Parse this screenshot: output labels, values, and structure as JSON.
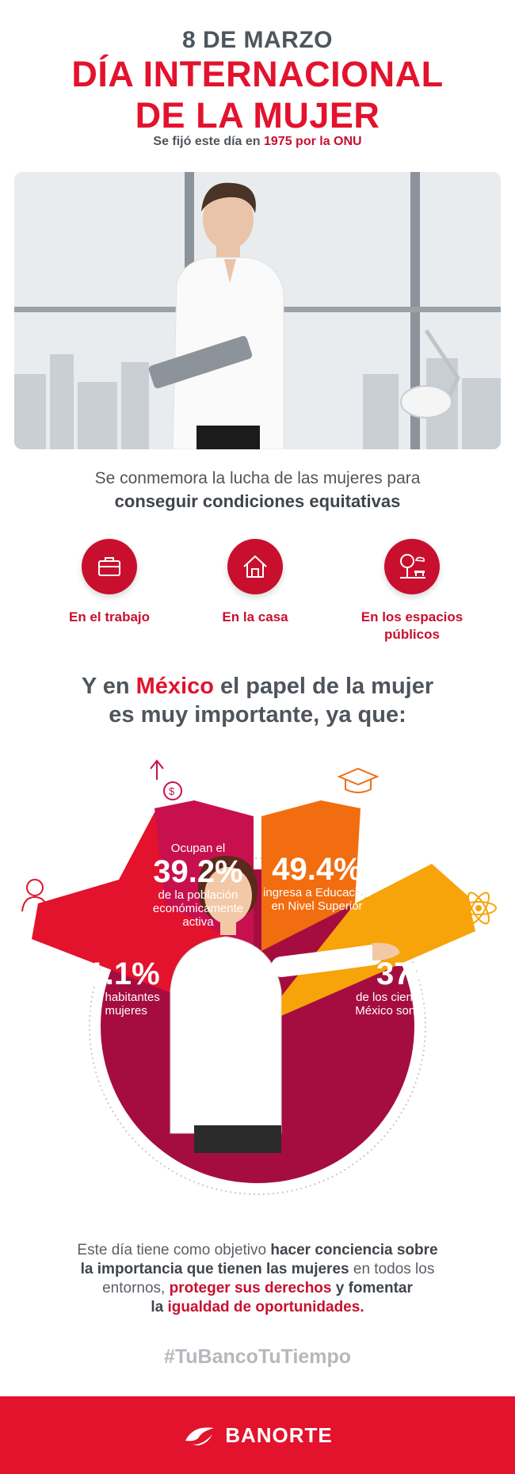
{
  "header": {
    "date": "8 DE MARZO",
    "title_line1": "DÍA INTERNACIONAL",
    "title_line2": "DE LA MUJER",
    "subtitle_prefix": "Se fijó este día en",
    "subtitle_highlight": "1975 por la ONU"
  },
  "intro": {
    "line1": "Se conmemora la lucha de las mujeres para",
    "line2": "conseguir condiciones equitativas"
  },
  "categories": [
    {
      "label_line1": "En el trabajo",
      "label_line2": "",
      "icon": "briefcase-icon"
    },
    {
      "label_line1": "En la casa",
      "label_line2": "",
      "icon": "house-icon"
    },
    {
      "label_line1": "En los espacios",
      "label_line2": "públicos",
      "icon": "park-icon"
    }
  ],
  "mexico": {
    "pre": "Y en",
    "highlight": "México",
    "post": "el papel de la mujer",
    "line2": "es muy importante, ya que:"
  },
  "stats": [
    {
      "pre": "",
      "value": "51.1%",
      "line1": "de los habitantes",
      "line2": "son mujeres",
      "line3": "",
      "color": "#e3122d"
    },
    {
      "pre": "Ocupan el",
      "value": "39.2%",
      "line1": "de la población",
      "line2": "económicamente",
      "line3": "activa",
      "color": "#c8104f"
    },
    {
      "pre": "",
      "value": "49.4%",
      "line1": "ingresa a Educación",
      "line2": "en Nivel Superior",
      "line3": "",
      "color": "#f26d0f"
    },
    {
      "pre": "",
      "value": "37%",
      "line1": "de los científicos en",
      "line2": "México son mujeres",
      "line3": "",
      "color": "#f7a30a"
    }
  ],
  "closing": {
    "p1": "Este día tiene como objetivo",
    "b1": "hacer conciencia sobre",
    "b2": "la importancia que tienen las mujeres",
    "p2": "en todos los",
    "p3": "entornos,",
    "r1": "proteger sus derechos",
    "b3": "y fomentar",
    "b4": "la",
    "r2": "igualdad de oportunidades."
  },
  "hashtag": "#TuBancoTuTiempo",
  "footer": {
    "brand": "BANORTE",
    "color": "#e3122d"
  }
}
